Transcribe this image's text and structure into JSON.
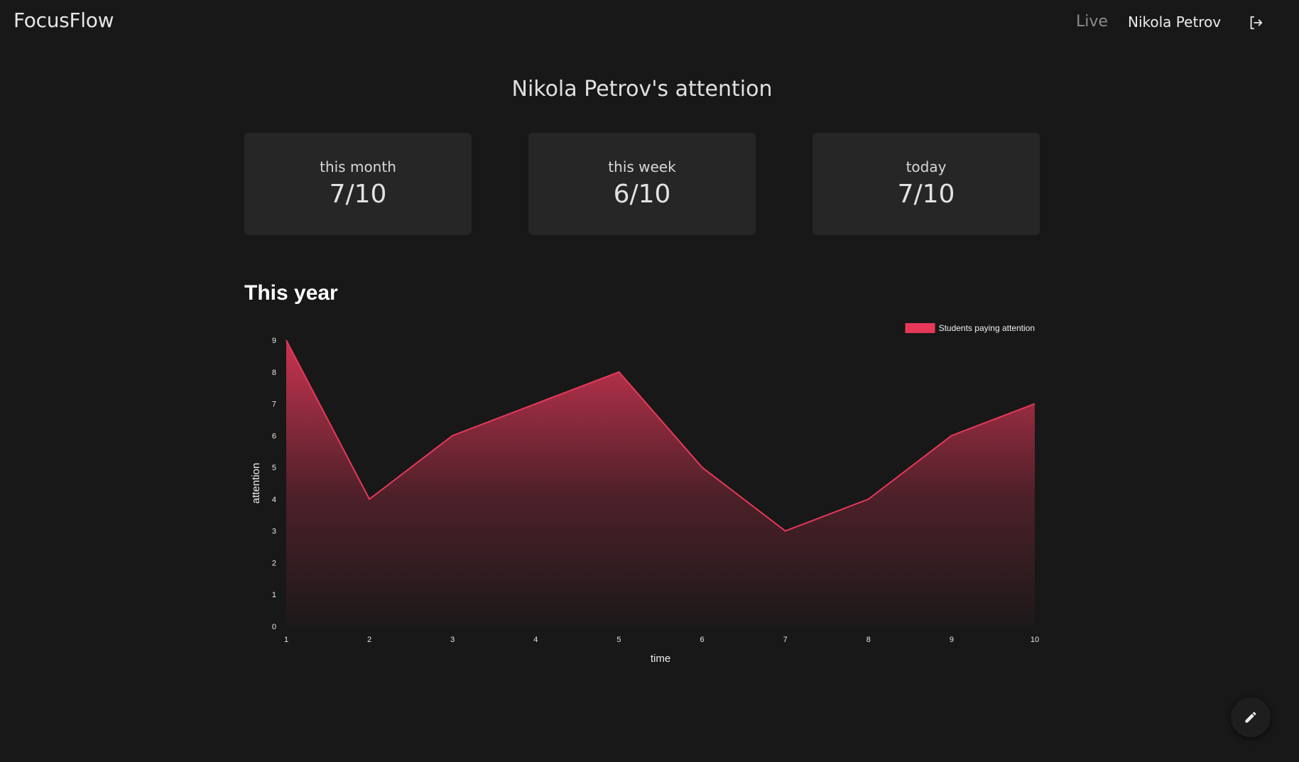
{
  "navbar": {
    "brand": "FocusFlow",
    "live_label": "Live",
    "user_name": "Nikola Petrov",
    "logout_icon": "logout-icon"
  },
  "page": {
    "title": "Nikola Petrov's attention"
  },
  "stats": [
    {
      "label": "this month",
      "value": "7/10"
    },
    {
      "label": "this week",
      "value": "6/10"
    },
    {
      "label": "today",
      "value": "7/10"
    }
  ],
  "section": {
    "title": "This year"
  },
  "fab": {
    "icon": "pencil-icon"
  },
  "colors": {
    "accent": "#e8385a",
    "background": "#181818",
    "card": "#262626"
  },
  "chart_data": {
    "type": "area",
    "x": [
      1,
      2,
      3,
      4,
      5,
      6,
      7,
      8,
      9,
      10
    ],
    "series": [
      {
        "name": "Students paying attention",
        "values": [
          9,
          4,
          6,
          7,
          8,
          5,
          3,
          4,
          6,
          7
        ]
      }
    ],
    "xlabel": "time",
    "ylabel": "attention",
    "ylim": [
      0,
      9
    ],
    "yticks": [
      0,
      1,
      2,
      3,
      4,
      5,
      6,
      7,
      8,
      9
    ],
    "grid": false,
    "legend": "top-right"
  }
}
